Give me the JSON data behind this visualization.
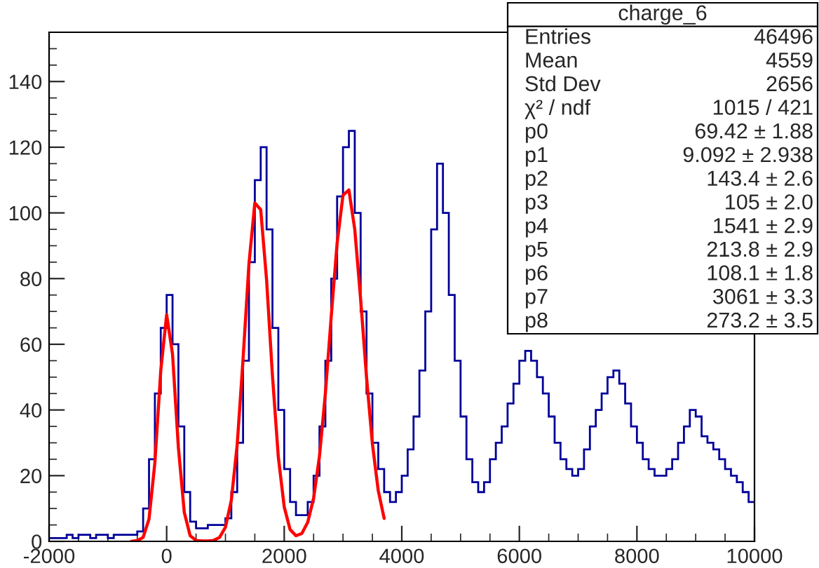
{
  "chart_data": {
    "type": "histogram",
    "color": "#000099",
    "bins": [
      -2000,
      -1900,
      -1800,
      -1700,
      -1600,
      -1500,
      -1400,
      -1300,
      -1200,
      -1100,
      -1000,
      -900,
      -800,
      -700,
      -600,
      -500,
      -400,
      -300,
      -200,
      -100,
      0,
      100,
      200,
      300,
      400,
      500,
      600,
      700,
      800,
      900,
      1000,
      1100,
      1200,
      1300,
      1400,
      1500,
      1600,
      1700,
      1800,
      1900,
      2000,
      2100,
      2200,
      2300,
      2400,
      2500,
      2600,
      2700,
      2800,
      2900,
      3000,
      3100,
      3200,
      3300,
      3400,
      3500,
      3600,
      3700,
      3800,
      3900,
      4000,
      4100,
      4200,
      4300,
      4400,
      4500,
      4600,
      4700,
      4800,
      4900,
      5000,
      5100,
      5200,
      5300,
      5400,
      5500,
      5600,
      5700,
      5800,
      5900,
      6000,
      6100,
      6200,
      6300,
      6400,
      6500,
      6600,
      6700,
      6800,
      6900,
      7000,
      7100,
      7200,
      7300,
      7400,
      7500,
      7600,
      7700,
      7800,
      7900,
      8000,
      8100,
      8200,
      8300,
      8400,
      8500,
      8600,
      8700,
      8800,
      8900,
      9000,
      9100,
      9200,
      9300,
      9400,
      9500,
      9600,
      9700,
      9800,
      9900,
      10000
    ],
    "values": [
      1,
      1,
      1,
      2,
      1,
      2,
      2,
      1,
      2,
      2,
      1,
      2,
      2,
      2,
      2,
      3,
      10,
      25,
      45,
      65,
      75,
      60,
      35,
      15,
      6,
      4,
      4,
      5,
      5,
      5,
      7,
      15,
      30,
      55,
      85,
      110,
      120,
      95,
      65,
      40,
      22,
      12,
      8,
      8,
      12,
      20,
      35,
      55,
      80,
      105,
      120,
      125,
      100,
      70,
      45,
      30,
      22,
      15,
      12,
      15,
      20,
      28,
      38,
      52,
      70,
      95,
      115,
      100,
      75,
      55,
      38,
      25,
      18,
      15,
      18,
      25,
      30,
      35,
      42,
      48,
      55,
      58,
      55,
      50,
      45,
      38,
      30,
      25,
      22,
      20,
      22,
      28,
      35,
      40,
      45,
      50,
      52,
      48,
      42,
      35,
      30,
      25,
      22,
      20,
      20,
      22,
      25,
      30,
      35,
      40,
      38,
      32,
      30,
      28,
      25,
      22,
      20,
      18,
      15,
      12
    ],
    "series": [
      {
        "type": "line",
        "color": "#ff0000",
        "x": [
          -600,
          -500,
          -400,
          -300,
          -200,
          -100,
          0,
          100,
          200,
          300,
          400,
          500,
          600,
          700,
          800,
          900,
          1000,
          1100,
          1200,
          1300,
          1400,
          1500,
          1600,
          1700,
          1800,
          1900,
          2000,
          2100,
          2200,
          2300,
          2400,
          2500,
          2600,
          2700,
          2800,
          2900,
          3000,
          3100,
          3200,
          3300,
          3400,
          3500,
          3600,
          3700
        ],
        "values": [
          0,
          0.2,
          1.2,
          6.8,
          24,
          52,
          69,
          57,
          28.5,
          8.8,
          1.7,
          0.3,
          0.1,
          0.1,
          0.3,
          1.2,
          4.3,
          12.5,
          29.4,
          55.6,
          84.5,
          103,
          101,
          79.6,
          50.4,
          25.6,
          10.5,
          3.6,
          1.7,
          2.4,
          5.8,
          13.1,
          26,
          45,
          68.5,
          90.8,
          105.4,
          107,
          95,
          73.7,
          50,
          29.7,
          15.4,
          7
        ]
      }
    ],
    "xlim": [
      -2000,
      10000
    ],
    "xticks": [
      -2000,
      0,
      2000,
      4000,
      6000,
      8000,
      10000
    ],
    "ylim": [
      0,
      155
    ],
    "yticks": [
      0,
      20,
      40,
      60,
      80,
      100,
      120,
      140
    ],
    "grid": false,
    "legend": false,
    "annotations": [
      "charge_6",
      "Entries",
      "46496",
      "Mean",
      "4559",
      "Std Dev",
      "2656",
      "χ² / ndf",
      "1015 / 421",
      "p0",
      "69.42 ± 1.88",
      "p1",
      "9.092 ± 2.938",
      "p2",
      "143.4 ± 2.6",
      "p3",
      "105 ± 2.0",
      "p4",
      "1541 ± 2.9",
      "p5",
      "213.8 ± 2.9",
      "p6",
      "108.1 ± 1.8",
      "p7",
      "3061 ± 3.3",
      "p8",
      "273.2 ± 3.5"
    ]
  }
}
